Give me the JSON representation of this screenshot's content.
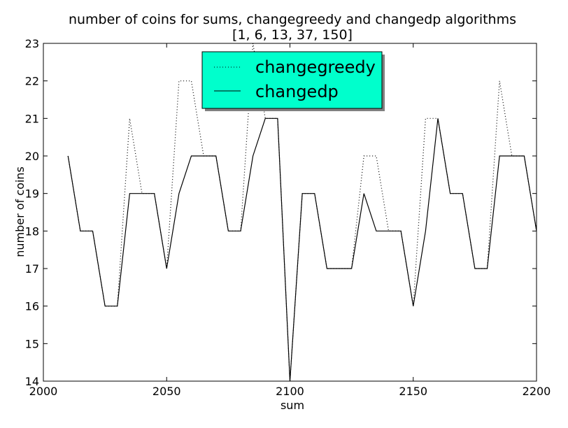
{
  "chart_data": {
    "type": "line",
    "title": "number of coins for sums, changegreedy and changedp algorithms",
    "subtitle": "[1, 6, 13, 37, 150]",
    "xlabel": "sum",
    "ylabel": "number of coins",
    "xlim": [
      2000,
      2200
    ],
    "ylim": [
      14,
      23
    ],
    "xticks": [
      2000,
      2050,
      2100,
      2150,
      2200
    ],
    "yticks": [
      14,
      15,
      16,
      17,
      18,
      19,
      20,
      21,
      22,
      23
    ],
    "grid": false,
    "legend_position": "top-center",
    "legend_background": "#00FFCC",
    "x": [
      2010,
      2015,
      2020,
      2025,
      2030,
      2035,
      2040,
      2045,
      2050,
      2055,
      2060,
      2065,
      2070,
      2075,
      2080,
      2085,
      2090,
      2095,
      2100,
      2105,
      2110,
      2115,
      2120,
      2125,
      2130,
      2135,
      2140,
      2145,
      2150,
      2155,
      2160,
      2165,
      2170,
      2175,
      2180,
      2185,
      2190,
      2195,
      2200
    ],
    "series": [
      {
        "name": "changegreedy",
        "style": "dotted",
        "color": "#000000",
        "values": [
          20,
          18,
          18,
          16,
          16,
          21,
          19,
          19,
          17,
          22,
          22,
          20,
          20,
          18,
          18,
          23,
          21,
          21,
          14,
          19,
          19,
          17,
          17,
          17,
          20,
          20,
          18,
          18,
          16,
          21,
          21,
          19,
          19,
          17,
          17,
          22,
          20,
          20,
          18
        ]
      },
      {
        "name": "changedp",
        "style": "solid",
        "color": "#000000",
        "values": [
          20,
          18,
          18,
          16,
          16,
          19,
          19,
          19,
          17,
          19,
          20,
          20,
          20,
          18,
          18,
          20,
          21,
          21,
          14,
          19,
          19,
          17,
          17,
          17,
          19,
          18,
          18,
          18,
          16,
          18,
          21,
          19,
          19,
          17,
          17,
          20,
          20,
          20,
          18
        ]
      }
    ]
  }
}
